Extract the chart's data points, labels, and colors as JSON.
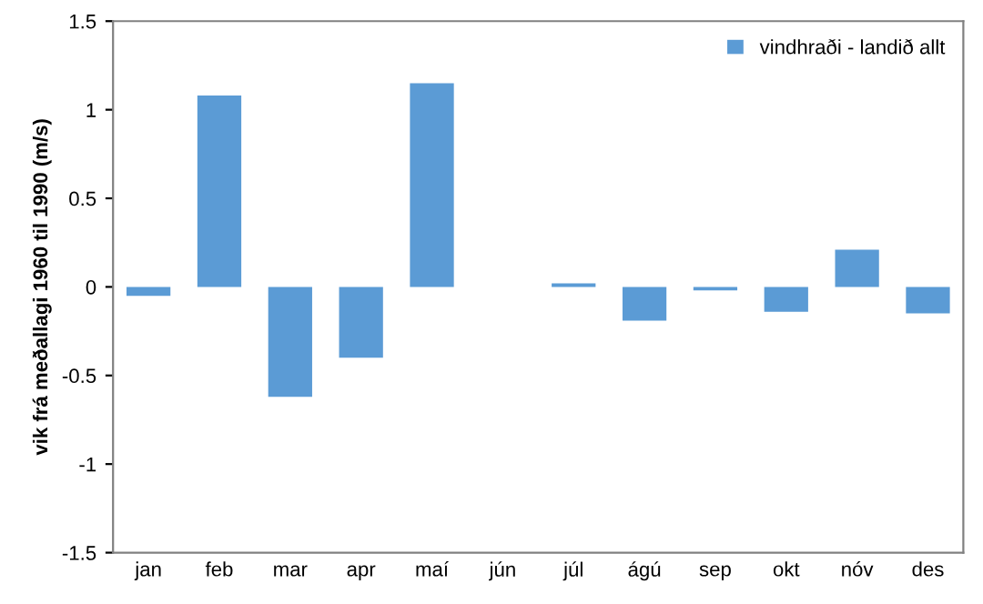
{
  "chart_data": {
    "type": "bar",
    "ylabel": "vik frá meðallagi 1960 til 1990 (m/s)",
    "categories": [
      "jan",
      "feb",
      "mar",
      "apr",
      "maí",
      "jún",
      "júl",
      "ágú",
      "sep",
      "okt",
      "nóv",
      "des"
    ],
    "series": [
      {
        "name": "vindhraði - landið allt",
        "color": "#5b9bd5",
        "values": [
          -0.05,
          1.08,
          -0.62,
          -0.4,
          1.15,
          0,
          0.02,
          -0.19,
          -0.02,
          -0.14,
          0.21,
          -0.15
        ]
      }
    ],
    "ylim": [
      -1.5,
      1.5
    ],
    "yticks": [
      {
        "value": -1.5,
        "label": "-1.5"
      },
      {
        "value": -1,
        "label": "-1"
      },
      {
        "value": -0.5,
        "label": "-0.5"
      },
      0,
      0.5,
      1,
      1.5
    ],
    "grid": false,
    "legend": "top right"
  }
}
